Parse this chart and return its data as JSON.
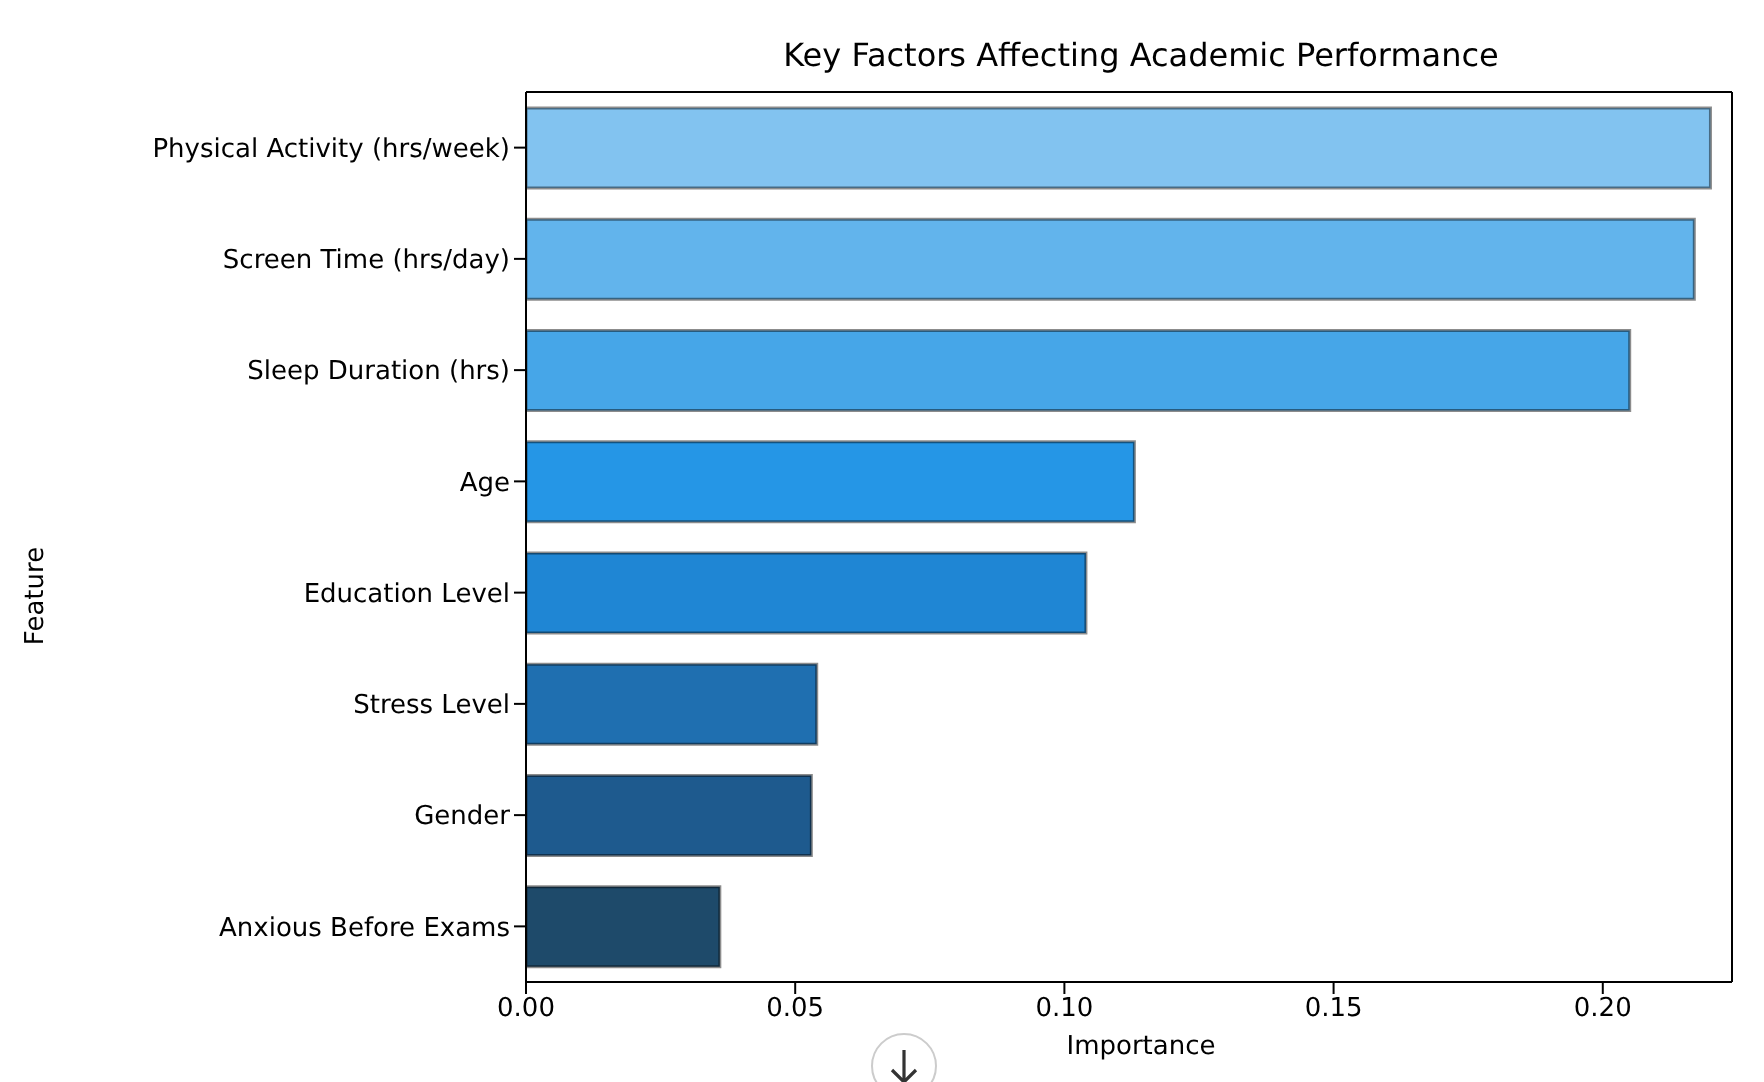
{
  "chart_data": {
    "type": "bar",
    "orientation": "horizontal",
    "title": "Key Factors Affecting Academic Performance",
    "xlabel": "Importance",
    "ylabel": "Feature",
    "categories": [
      "Physical Activity (hrs/week)",
      "Screen Time (hrs/day)",
      "Sleep Duration (hrs)",
      "Age",
      "Education Level",
      "Stress Level",
      "Gender",
      "Anxious Before Exams"
    ],
    "values": [
      0.22,
      0.217,
      0.205,
      0.113,
      0.104,
      0.054,
      0.053,
      0.036
    ],
    "colors": [
      "#82c3f0",
      "#62b4ec",
      "#46a6e8",
      "#2596e6",
      "#1f86d4",
      "#1f6fb0",
      "#1e5a8e",
      "#1e4a6a"
    ],
    "xlim": [
      0,
      0.224
    ],
    "xticks": [
      {
        "value": 0,
        "label": "0.00"
      },
      {
        "value": 0.05,
        "label": "0.05"
      },
      {
        "value": 0.1,
        "label": "0.10"
      },
      {
        "value": 0.15,
        "label": "0.15"
      },
      {
        "value": 0.2,
        "label": "0.20"
      }
    ],
    "grid": false,
    "legend": false
  }
}
